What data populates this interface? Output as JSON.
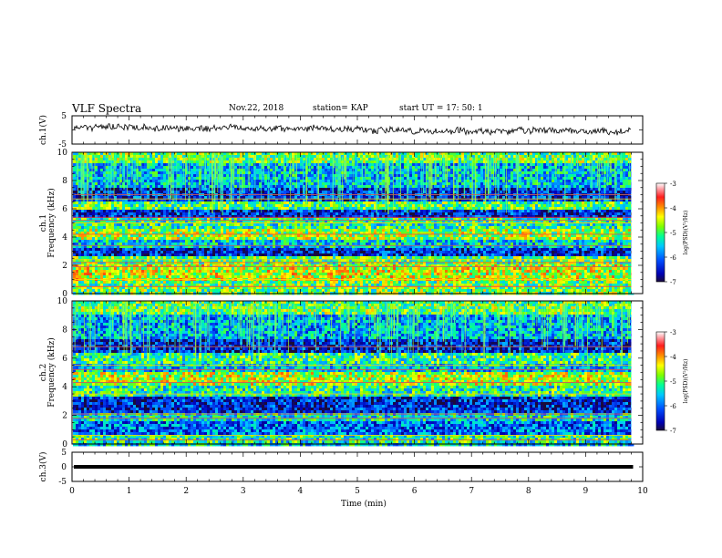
{
  "header": {
    "title": "VLF Spectra",
    "date": "Nov.22, 2018",
    "station": "station= KAP",
    "start": "start  UT =   17: 50: 1"
  },
  "chart_data": [
    {
      "type": "line",
      "name": "waveform-ch1",
      "ylabel": "ch.1(V)",
      "xlim": [
        0,
        10
      ],
      "ylim": [
        -5,
        5
      ],
      "yticks": [
        "5",
        "-5"
      ],
      "xrange_data": [
        0,
        9.8
      ],
      "description_values": "noisy waveform fluctuating roughly between -1.5 and 3 V"
    },
    {
      "type": "heatmap",
      "name": "spectrogram-ch1",
      "ylabel": "ch.1\nFrequency (kHz)",
      "xlim": [
        0,
        10
      ],
      "ylim": [
        0,
        10
      ],
      "yticks": [
        "10",
        "8",
        "6",
        "4",
        "2",
        "0"
      ],
      "xrange_data": [
        0,
        9.8
      ],
      "colorbar": {
        "label": "log(PSD)(V²/Hz)",
        "range": [
          -7,
          -3
        ],
        "ticks": [
          "-3",
          "-4",
          "-5",
          "-6",
          "-7"
        ]
      },
      "bands_khz": [
        {
          "f0": 9.2,
          "f1": 10.0,
          "level": -4.9
        },
        {
          "f0": 7.5,
          "f1": 9.2,
          "level": -5.6
        },
        {
          "f0": 6.6,
          "f1": 7.5,
          "level": -6.3
        },
        {
          "f0": 6.0,
          "f1": 6.6,
          "level": -5.0
        },
        {
          "f0": 5.3,
          "f1": 6.0,
          "level": -6.4
        },
        {
          "f0": 4.6,
          "f1": 5.3,
          "level": -5.2
        },
        {
          "f0": 3.8,
          "f1": 4.6,
          "level": -4.7
        },
        {
          "f0": 3.3,
          "f1": 3.8,
          "level": -5.5
        },
        {
          "f0": 2.6,
          "f1": 3.3,
          "level": -6.4
        },
        {
          "f0": 2.0,
          "f1": 2.6,
          "level": -5.0
        },
        {
          "f0": 0.9,
          "f1": 2.0,
          "level": -4.5
        },
        {
          "f0": 0.0,
          "f1": 0.9,
          "level": -4.9
        }
      ],
      "lines_khz": [
        0.5,
        1.0,
        1.9,
        2.2,
        2.4,
        3.4,
        4.2,
        5.0,
        5.2,
        5.4,
        6.7,
        7.0
      ]
    },
    {
      "type": "heatmap",
      "name": "spectrogram-ch2",
      "ylabel": "ch.2\nFrequency (kHz)",
      "xlim": [
        0,
        10
      ],
      "ylim": [
        0,
        10
      ],
      "yticks": [
        "10",
        "8",
        "6",
        "4",
        "2",
        "0"
      ],
      "xrange_data": [
        0,
        9.8
      ],
      "colorbar": {
        "label": "log(PSD)(V²/Hz)",
        "range": [
          -7,
          -3
        ],
        "ticks": [
          "-3",
          "-4",
          "-5",
          "-6",
          "-7"
        ]
      },
      "bands_khz": [
        {
          "f0": 9.0,
          "f1": 10.0,
          "level": -4.9
        },
        {
          "f0": 7.3,
          "f1": 9.0,
          "level": -5.7
        },
        {
          "f0": 6.4,
          "f1": 7.3,
          "level": -6.4
        },
        {
          "f0": 5.6,
          "f1": 6.4,
          "level": -5.1
        },
        {
          "f0": 5.0,
          "f1": 5.6,
          "level": -5.6
        },
        {
          "f0": 4.0,
          "f1": 5.0,
          "level": -4.6
        },
        {
          "f0": 3.4,
          "f1": 4.0,
          "level": -5.2
        },
        {
          "f0": 2.2,
          "f1": 3.4,
          "level": -6.4
        },
        {
          "f0": 1.6,
          "f1": 2.2,
          "level": -5.4
        },
        {
          "f0": 0.6,
          "f1": 1.6,
          "level": -6.0
        },
        {
          "f0": 0.0,
          "f1": 0.6,
          "level": -5.2
        }
      ],
      "lines_khz": [
        0.3,
        0.6,
        1.8,
        2.1,
        3.5,
        4.3,
        5.2,
        5.5,
        6.8
      ]
    },
    {
      "type": "line",
      "name": "waveform-ch3",
      "ylabel": "ch.3(V)",
      "xlabel": "Time  (min)",
      "xlim": [
        0,
        10
      ],
      "ylim": [
        -5,
        5
      ],
      "yticks": [
        "5",
        "0",
        "-5"
      ],
      "xticks": [
        "0",
        "1",
        "2",
        "3",
        "4",
        "5",
        "6",
        "7",
        "8",
        "9",
        "10"
      ],
      "constant_value": 0,
      "xrange_data": [
        0,
        10
      ]
    }
  ]
}
